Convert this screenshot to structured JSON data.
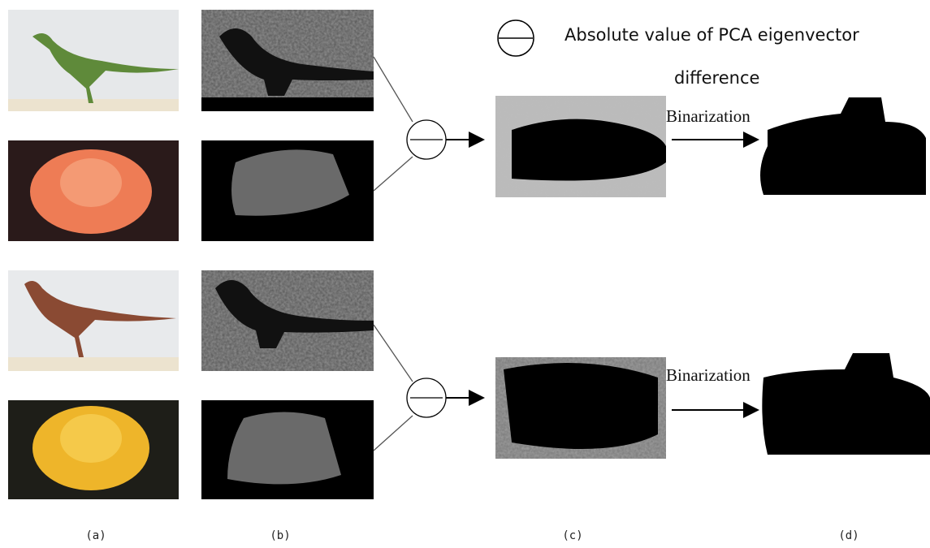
{
  "legend": {
    "lines": [
      "Absolute value of PCA eigenvector",
      "difference"
    ]
  },
  "steps": [
    "Binarization",
    "Binarization"
  ],
  "column_labels": [
    "(a)",
    "(b)",
    "(c)",
    "(d)"
  ]
}
